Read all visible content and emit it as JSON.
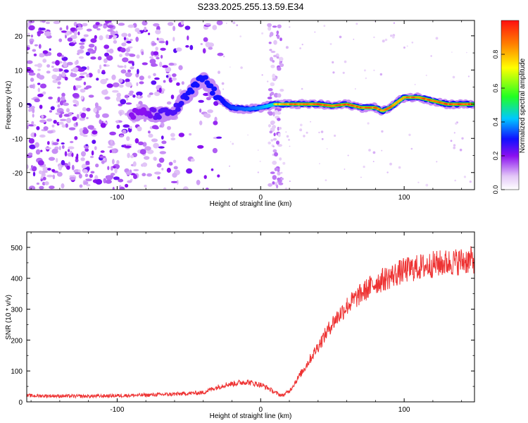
{
  "title": "S233.2025.255.13.59.E34",
  "chart_data": [
    {
      "type": "heatmap",
      "title": "S233.2025.255.13.59.E34",
      "xlabel": "Height of straight line (km)",
      "ylabel": "Frequency (Hz)",
      "xlim": [
        -163,
        149
      ],
      "ylim": [
        -25,
        24.5
      ],
      "xticks": [
        -100,
        0,
        100
      ],
      "yticks": [
        -20,
        -10,
        0,
        10,
        20
      ],
      "colorbar": {
        "label": "Normalized spectral amplitude",
        "range": [
          0,
          1
        ],
        "ticks": [
          0.0,
          0.2,
          0.4,
          0.6,
          0.8
        ]
      },
      "ridge": {
        "x": [
          -90,
          -80,
          -70,
          -60,
          -50,
          -40,
          -35,
          -30,
          -25,
          -20,
          -10,
          0,
          10,
          20,
          30,
          40,
          50,
          60,
          70,
          80,
          85,
          90,
          95,
          100,
          110,
          120,
          130,
          140,
          148
        ],
        "y": [
          -3,
          -2.5,
          -3,
          -2,
          3,
          8,
          5,
          2,
          0.5,
          -1,
          -1.5,
          -1,
          0,
          0,
          0,
          0,
          -0.5,
          0,
          -1,
          -1,
          -2,
          -1,
          0.5,
          2,
          2,
          1,
          0,
          0,
          0
        ],
        "amplitude": [
          0.2,
          0.2,
          0.25,
          0.25,
          0.3,
          0.35,
          0.45,
          0.45,
          0.5,
          0.55,
          0.6,
          0.65,
          0.75,
          0.85,
          0.9,
          0.9,
          0.9,
          0.9,
          0.88,
          0.88,
          0.85,
          0.85,
          0.85,
          0.85,
          0.88,
          0.9,
          0.9,
          0.92,
          0.92
        ]
      }
    },
    {
      "type": "line",
      "xlabel": "Height of straight line (km)",
      "ylabel": "SNR (10 * v/v)",
      "xlim": [
        -163,
        149
      ],
      "ylim": [
        0,
        550
      ],
      "xticks": [
        -100,
        0,
        100
      ],
      "yticks": [
        0,
        100,
        200,
        300,
        400,
        500
      ],
      "color": "#ee3333",
      "series": [
        {
          "name": "SNR",
          "x": [
            -163,
            -120,
            -80,
            -60,
            -40,
            -35,
            -25,
            -10,
            0,
            5,
            10,
            15,
            20,
            30,
            40,
            50,
            60,
            70,
            80,
            90,
            100,
            120,
            149
          ],
          "values": [
            20,
            18,
            22,
            25,
            30,
            40,
            55,
            65,
            55,
            45,
            30,
            20,
            35,
            105,
            180,
            255,
            310,
            350,
            385,
            405,
            425,
            445,
            460
          ]
        }
      ]
    }
  ]
}
